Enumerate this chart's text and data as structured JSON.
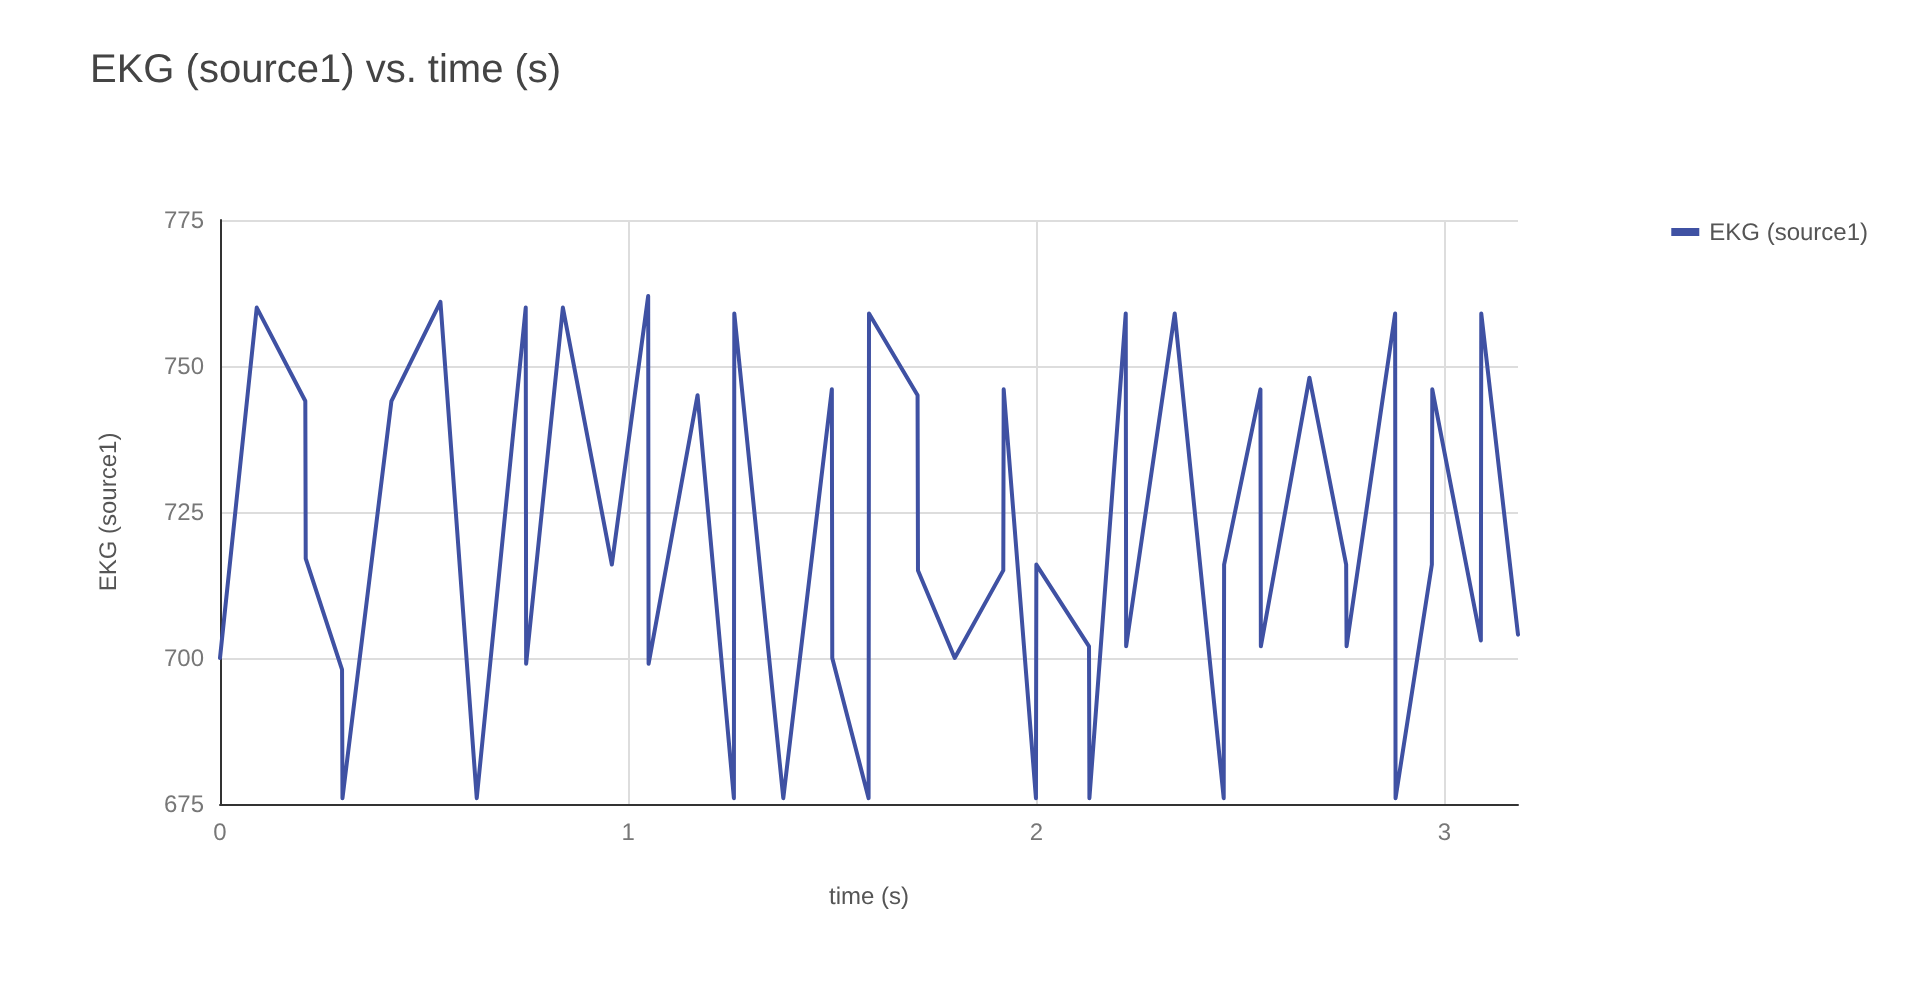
{
  "chart_data": {
    "type": "line",
    "title": "EKG (source1) vs. time (s)",
    "xlabel": "time (s)",
    "ylabel": "EKG (source1)",
    "series": [
      {
        "name": "EKG (source1)",
        "color": "#3f51a3",
        "x": [
          0,
          0.09,
          0.209,
          0.21,
          0.299,
          0.3,
          0.42,
          0.54,
          0.629,
          0.749,
          0.75,
          0.84,
          0.96,
          1.049,
          1.05,
          1.17,
          1.259,
          1.26,
          1.38,
          1.499,
          1.5,
          1.589,
          1.59,
          1.709,
          1.71,
          1.8,
          1.919,
          1.92,
          1.999,
          2.0,
          2.129,
          2.13,
          2.219,
          2.22,
          2.339,
          2.459,
          2.46,
          2.549,
          2.55,
          2.669,
          2.759,
          2.76,
          2.879,
          2.88,
          2.969,
          2.97,
          3.089,
          3.09,
          3.18
        ],
        "values": [
          700,
          760,
          744,
          717,
          698,
          676,
          744,
          761,
          676,
          760,
          699,
          760,
          716,
          762,
          699,
          745,
          676,
          759,
          676,
          746,
          700,
          676,
          759,
          745,
          715,
          700,
          715,
          746,
          676,
          716,
          702,
          676,
          759,
          702,
          759,
          676,
          716,
          746,
          702,
          748,
          716,
          702,
          759,
          676,
          716,
          746,
          703,
          759,
          704
        ]
      }
    ],
    "xlim": [
      0,
      3.18
    ],
    "xticks": [
      0,
      1,
      2,
      3
    ],
    "ylim": [
      675,
      775
    ],
    "yticks": [
      675,
      700,
      725,
      750,
      775
    ],
    "grid": true,
    "legend": "top right",
    "marker": "none",
    "line_style": "solid"
  }
}
